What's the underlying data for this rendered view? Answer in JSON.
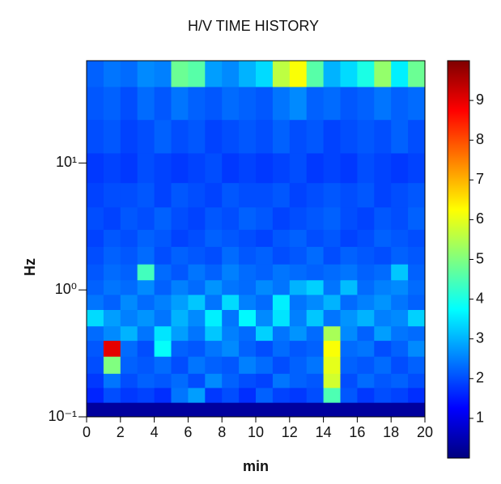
{
  "chart_data": {
    "type": "heatmap",
    "title": "H/V TIME HISTORY",
    "x_label": "min",
    "y_label": "Hz",
    "colormap": "jet",
    "log_y": true,
    "x_bins": [
      0,
      1,
      2,
      3,
      4,
      5,
      6,
      7,
      8,
      9,
      10,
      11,
      12,
      13,
      14,
      15,
      16,
      17,
      18,
      19,
      20
    ],
    "y_bins": [
      0.1,
      0.13,
      0.17,
      0.22,
      0.3,
      0.4,
      0.52,
      0.7,
      0.92,
      1.2,
      1.6,
      2.2,
      3,
      4.5,
      7,
      12,
      22,
      40,
      64
    ],
    "z": [
      [
        0.3,
        0.3,
        0.3,
        0.3,
        0.3,
        0.3,
        0.3,
        0.3,
        0.3,
        0.3,
        0.3,
        0.3,
        0.3,
        0.3,
        0.3,
        0.3,
        0.3,
        0.3,
        0.3,
        0.3
      ],
      [
        1.6,
        2.0,
        1.8,
        1.9,
        1.7,
        2.4,
        2.8,
        1.8,
        2.0,
        1.7,
        2.2,
        1.9,
        1.8,
        2.0,
        4.5,
        2.1,
        1.8,
        2.0,
        1.9,
        1.7
      ],
      [
        1.8,
        2.4,
        2.0,
        2.2,
        2.1,
        2.3,
        2.0,
        2.6,
        2.2,
        2.0,
        1.9,
        2.4,
        2.2,
        2.1,
        5.8,
        2.0,
        2.3,
        2.1,
        2.2,
        2.0
      ],
      [
        2.0,
        5.0,
        2.2,
        2.1,
        2.3,
        2.0,
        2.4,
        2.2,
        2.1,
        2.5,
        2.3,
        2.0,
        2.2,
        2.4,
        6.0,
        2.2,
        2.1,
        2.3,
        2.0,
        2.2
      ],
      [
        2.1,
        9.0,
        2.3,
        2.0,
        3.8,
        2.2,
        2.1,
        2.4,
        2.6,
        2.2,
        2.0,
        2.3,
        2.1,
        2.2,
        6.2,
        2.3,
        2.4,
        2.0,
        2.2,
        2.6
      ],
      [
        2.3,
        2.6,
        3.0,
        2.4,
        3.5,
        2.8,
        2.4,
        3.2,
        2.5,
        2.3,
        3.3,
        2.4,
        2.7,
        2.3,
        5.4,
        2.6,
        2.2,
        2.8,
        2.4,
        2.3
      ],
      [
        3.4,
        2.8,
        2.5,
        2.7,
        2.4,
        3.0,
        2.6,
        3.6,
        2.4,
        3.7,
        2.6,
        3.5,
        2.5,
        3.2,
        2.4,
        2.7,
        3.0,
        2.5,
        2.6,
        3.3
      ],
      [
        2.4,
        2.2,
        2.6,
        2.3,
        2.5,
        2.8,
        3.2,
        2.4,
        3.4,
        2.5,
        2.3,
        3.6,
        2.4,
        2.6,
        3.0,
        2.3,
        2.5,
        2.7,
        2.4,
        2.2
      ],
      [
        2.2,
        2.4,
        2.3,
        2.6,
        2.2,
        2.5,
        2.3,
        2.7,
        2.4,
        2.3,
        2.6,
        2.4,
        3.0,
        3.3,
        2.4,
        3.1,
        2.3,
        2.5,
        2.6,
        2.3
      ],
      [
        2.1,
        2.3,
        2.2,
        4.4,
        2.3,
        2.1,
        2.4,
        2.2,
        2.5,
        2.3,
        2.2,
        2.4,
        2.3,
        2.2,
        2.3,
        2.4,
        2.2,
        2.3,
        3.2,
        2.2
      ],
      [
        2.0,
        2.2,
        2.1,
        2.3,
        2.0,
        2.2,
        2.1,
        2.0,
        2.3,
        2.1,
        2.2,
        2.0,
        2.1,
        2.3,
        2.0,
        2.2,
        2.1,
        2.0,
        2.2,
        2.1
      ],
      [
        1.9,
        2.1,
        2.0,
        2.2,
        2.1,
        1.9,
        2.0,
        2.2,
        2.1,
        2.0,
        1.9,
        2.1,
        2.2,
        2.0,
        2.1,
        1.9,
        2.0,
        2.2,
        2.1,
        2.0
      ],
      [
        2.0,
        1.9,
        2.1,
        2.0,
        2.2,
        2.0,
        1.9,
        2.1,
        2.0,
        2.2,
        2.1,
        1.9,
        2.0,
        2.1,
        2.2,
        2.0,
        1.9,
        2.1,
        2.0,
        2.2
      ],
      [
        1.9,
        2.0,
        2.0,
        2.1,
        1.9,
        2.1,
        2.0,
        1.9,
        2.1,
        2.0,
        2.0,
        2.1,
        1.9,
        2.0,
        2.1,
        2.0,
        2.1,
        1.9,
        2.0,
        2.1
      ],
      [
        1.8,
        1.9,
        1.8,
        2.0,
        1.9,
        1.8,
        1.9,
        2.0,
        1.8,
        1.9,
        1.8,
        1.9,
        2.0,
        1.8,
        1.9,
        1.8,
        2.0,
        1.9,
        1.8,
        1.9
      ],
      [
        2.0,
        2.1,
        1.9,
        2.0,
        2.2,
        2.0,
        2.1,
        1.9,
        2.0,
        2.1,
        2.0,
        2.2,
        2.0,
        2.1,
        1.9,
        2.0,
        2.1,
        2.0,
        2.2,
        2.0
      ],
      [
        2.1,
        2.2,
        2.0,
        2.3,
        2.1,
        2.4,
        2.2,
        2.1,
        2.3,
        2.2,
        2.1,
        2.4,
        2.6,
        2.2,
        2.3,
        2.1,
        2.2,
        2.4,
        2.2,
        2.3
      ],
      [
        2.2,
        2.4,
        2.3,
        2.6,
        2.5,
        4.8,
        4.6,
        2.8,
        2.6,
        3.0,
        3.4,
        5.6,
        6.2,
        4.6,
        3.0,
        3.4,
        4.0,
        5.2,
        3.6,
        4.8
      ]
    ],
    "xlim": [
      0,
      20
    ],
    "xticks": [
      0,
      2,
      4,
      6,
      8,
      10,
      12,
      14,
      16,
      18,
      20
    ],
    "ylim": [
      0.1,
      64
    ],
    "yticks": [
      {
        "value": 0.1,
        "label": "10⁻¹"
      },
      {
        "value": 1,
        "label": "10⁰"
      },
      {
        "value": 10,
        "label": "10¹"
      }
    ],
    "zlim": [
      0,
      10
    ],
    "zticks": [
      1,
      2,
      3,
      4,
      5,
      6,
      7,
      8,
      9
    ]
  }
}
